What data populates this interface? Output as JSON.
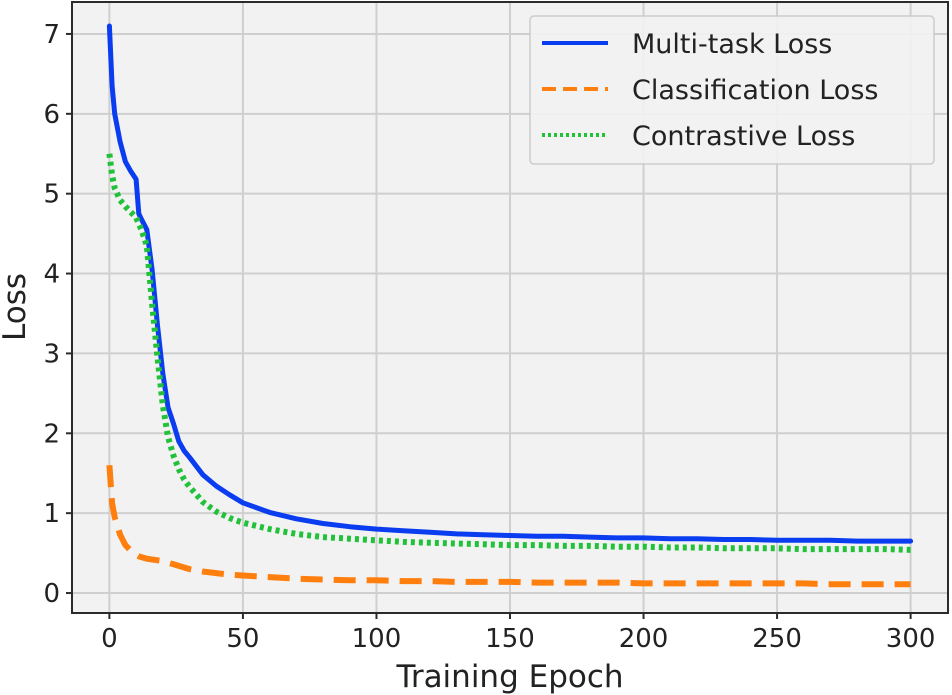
{
  "chart_data": {
    "type": "line",
    "title": "",
    "xlabel": "Training Epoch",
    "ylabel": "Loss",
    "xlim": [
      -14,
      314
    ],
    "ylim": [
      -0.25,
      7.4
    ],
    "xticks": [
      0,
      50,
      100,
      150,
      200,
      250,
      300
    ],
    "yticks": [
      0,
      1,
      2,
      3,
      4,
      5,
      6,
      7
    ],
    "x_tick_labels": [
      "0",
      "50",
      "100",
      "150",
      "200",
      "250",
      "300"
    ],
    "y_tick_labels": [
      "0",
      "1",
      "2",
      "3",
      "4",
      "5",
      "6",
      "7"
    ],
    "grid": true,
    "legend_position": "top-right",
    "background": "#f2f2f2",
    "x": [
      0,
      1,
      2,
      4,
      6,
      8,
      10,
      11,
      12,
      14,
      16,
      18,
      20,
      22,
      24,
      26,
      28,
      30,
      35,
      40,
      45,
      50,
      60,
      70,
      80,
      90,
      100,
      110,
      120,
      130,
      140,
      150,
      160,
      170,
      180,
      190,
      200,
      210,
      220,
      230,
      240,
      250,
      260,
      270,
      280,
      290,
      300
    ],
    "series": [
      {
        "name": "Multi-task Loss",
        "color": "#0a3cf0",
        "dash": "solid",
        "values": [
          7.1,
          6.35,
          6.0,
          5.65,
          5.4,
          5.28,
          5.18,
          4.75,
          4.68,
          4.55,
          4.05,
          3.35,
          2.75,
          2.32,
          2.12,
          1.9,
          1.78,
          1.7,
          1.48,
          1.34,
          1.23,
          1.13,
          1.01,
          0.93,
          0.87,
          0.83,
          0.8,
          0.78,
          0.76,
          0.74,
          0.73,
          0.72,
          0.71,
          0.71,
          0.7,
          0.69,
          0.69,
          0.68,
          0.68,
          0.67,
          0.67,
          0.66,
          0.66,
          0.66,
          0.65,
          0.65,
          0.65
        ]
      },
      {
        "name": "Classification Loss",
        "color": "#ff7f0e",
        "dash": "dashed",
        "values": [
          1.6,
          1.12,
          0.95,
          0.73,
          0.6,
          0.53,
          0.48,
          0.46,
          0.45,
          0.43,
          0.42,
          0.41,
          0.4,
          0.38,
          0.36,
          0.34,
          0.32,
          0.3,
          0.27,
          0.25,
          0.23,
          0.22,
          0.2,
          0.18,
          0.17,
          0.16,
          0.16,
          0.15,
          0.15,
          0.14,
          0.14,
          0.14,
          0.13,
          0.13,
          0.13,
          0.13,
          0.12,
          0.12,
          0.12,
          0.12,
          0.12,
          0.12,
          0.12,
          0.11,
          0.11,
          0.11,
          0.11
        ]
      },
      {
        "name": "Contrastive Loss",
        "color": "#22c13a",
        "dash": "dotted",
        "values": [
          5.5,
          5.23,
          5.07,
          4.92,
          4.84,
          4.77,
          4.7,
          4.62,
          4.55,
          4.35,
          3.62,
          2.95,
          2.35,
          1.95,
          1.72,
          1.55,
          1.42,
          1.33,
          1.14,
          1.02,
          0.94,
          0.88,
          0.8,
          0.74,
          0.7,
          0.68,
          0.66,
          0.64,
          0.63,
          0.62,
          0.61,
          0.6,
          0.6,
          0.59,
          0.59,
          0.58,
          0.58,
          0.57,
          0.57,
          0.56,
          0.56,
          0.56,
          0.55,
          0.55,
          0.55,
          0.55,
          0.54
        ]
      }
    ]
  }
}
